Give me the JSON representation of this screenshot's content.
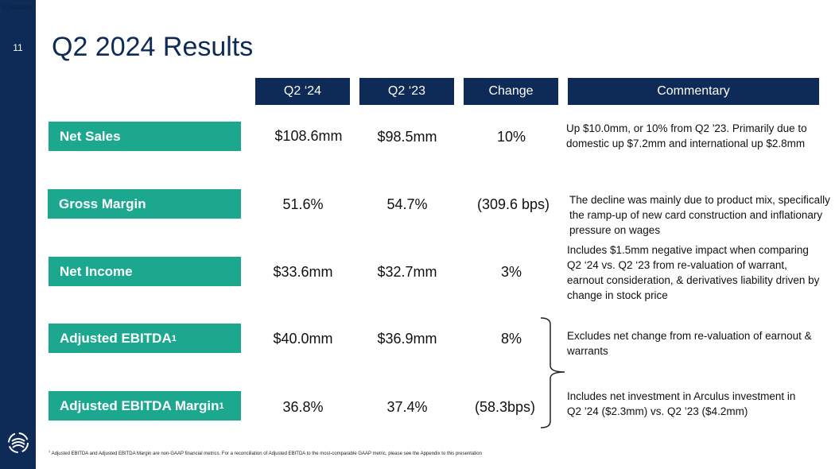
{
  "corner_code": "0.5474336",
  "page_number": "11",
  "title": "Q2 2024 Results",
  "headers": [
    "Q2 ‘24",
    "Q2 ‘23",
    "Change",
    "Commentary"
  ],
  "rows": [
    {
      "label": "Net Sales",
      "footnote": "",
      "q2_24": "$108.6mm",
      "q2_23": "$98.5mm",
      "change": "10%",
      "commentary": "Up $10.0mm, or 10% from Q2 '23. Primarily due to domestic up $7.2mm and international up $2.8mm"
    },
    {
      "label": "Gross Margin",
      "footnote": "",
      "q2_24": "51.6%",
      "q2_23": "54.7%",
      "change": "(309.6 bps)",
      "commentary": "The decline was mainly due to product mix, specifically the ramp-up of new card construction and inflationary pressure on wages"
    },
    {
      "label": "Net Income",
      "footnote": "",
      "q2_24": "$33.6mm",
      "q2_23": "$32.7mm",
      "change": "3%",
      "commentary": "Includes $1.5mm negative impact when comparing Q2 ‘24 vs. Q2 ‘23 from re-valuation of warrant, earnout consideration, & derivatives liability driven by change in stock price"
    },
    {
      "label": "Adjusted EBITDA",
      "footnote": "1",
      "q2_24": "$40.0mm",
      "q2_23": "$36.9mm",
      "change": "8%",
      "commentary": "Excludes net change from re-valuation of earnout & warrants"
    },
    {
      "label": "Adjusted EBITDA Margin",
      "footnote": "1",
      "q2_24": "36.8%",
      "q2_23": "37.4%",
      "change": "(58.3bps)",
      "commentary": "Includes net investment in Arculus investment in Q2 ’24 ($2.3mm) vs. Q2 ’23 ($4.2mm)"
    }
  ],
  "footnote": {
    "marker": "1",
    "text": "Adjusted EBITDA and Adjusted EBITDA Margin are non-GAAP financial metrics. For a reconciliation of Adjusted EBITDA to the most-comparable GAAP metric, please see the Appendix to this presentation"
  },
  "colors": {
    "navy": "#0e2a56",
    "teal": "#1ba88f"
  }
}
